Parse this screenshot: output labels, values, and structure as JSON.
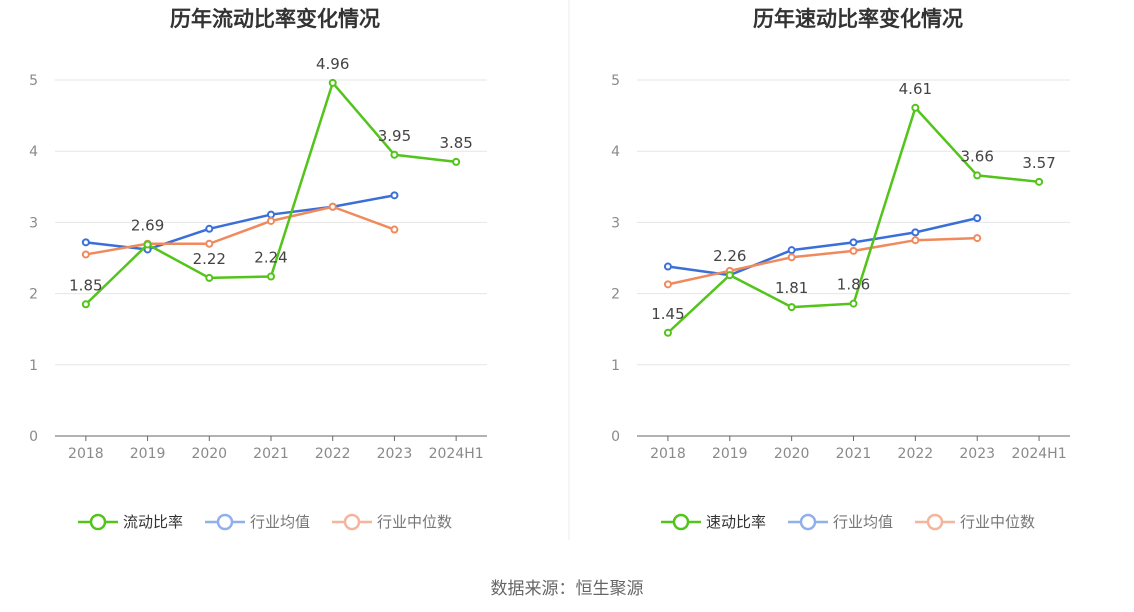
{
  "source_text": "数据来源：恒生聚源",
  "colors": {
    "green": "#52c41a",
    "blue": "#3a6fd8",
    "orange": "#f08a5d",
    "axis": "#666666",
    "grid": "#e6e6e6",
    "tick": "#8a8a8a",
    "label": "#444444"
  },
  "chart_data": [
    {
      "type": "line",
      "title": "历年流动比率变化情况",
      "categories": [
        "2018",
        "2019",
        "2020",
        "2021",
        "2022",
        "2023",
        "2024H1"
      ],
      "ylim": [
        0,
        5
      ],
      "yticks": [
        "0",
        "1",
        "2",
        "3",
        "4",
        "5"
      ],
      "grid": true,
      "legend_position": "bottom",
      "series": [
        {
          "name": "流动比率",
          "color": "#52c41a",
          "values": [
            1.85,
            2.69,
            2.22,
            2.24,
            4.96,
            3.95,
            3.85
          ],
          "labels": [
            "1.85",
            "2.69",
            "2.22",
            "2.24",
            "4.96",
            "3.95",
            "3.85"
          ]
        },
        {
          "name": "行业均值",
          "color": "#3a6fd8",
          "values": [
            2.72,
            2.62,
            2.91,
            3.11,
            3.22,
            3.38,
            null
          ]
        },
        {
          "name": "行业中位数",
          "color": "#f08a5d",
          "values": [
            2.55,
            2.7,
            2.7,
            3.02,
            3.22,
            2.9,
            null
          ]
        }
      ]
    },
    {
      "type": "line",
      "title": "历年速动比率变化情况",
      "categories": [
        "2018",
        "2019",
        "2020",
        "2021",
        "2022",
        "2023",
        "2024H1"
      ],
      "ylim": [
        0,
        5
      ],
      "yticks": [
        "0",
        "1",
        "2",
        "3",
        "4",
        "5"
      ],
      "grid": true,
      "legend_position": "bottom",
      "series": [
        {
          "name": "速动比率",
          "color": "#52c41a",
          "values": [
            1.45,
            2.26,
            1.81,
            1.86,
            4.61,
            3.66,
            3.57
          ],
          "labels": [
            "1.45",
            "2.26",
            "1.81",
            "1.86",
            "4.61",
            "3.66",
            "3.57"
          ]
        },
        {
          "name": "行业均值",
          "color": "#3a6fd8",
          "values": [
            2.38,
            2.26,
            2.61,
            2.72,
            2.86,
            3.06,
            null
          ]
        },
        {
          "name": "行业中位数",
          "color": "#f08a5d",
          "values": [
            2.13,
            2.32,
            2.51,
            2.6,
            2.75,
            2.78,
            null
          ]
        }
      ]
    }
  ]
}
